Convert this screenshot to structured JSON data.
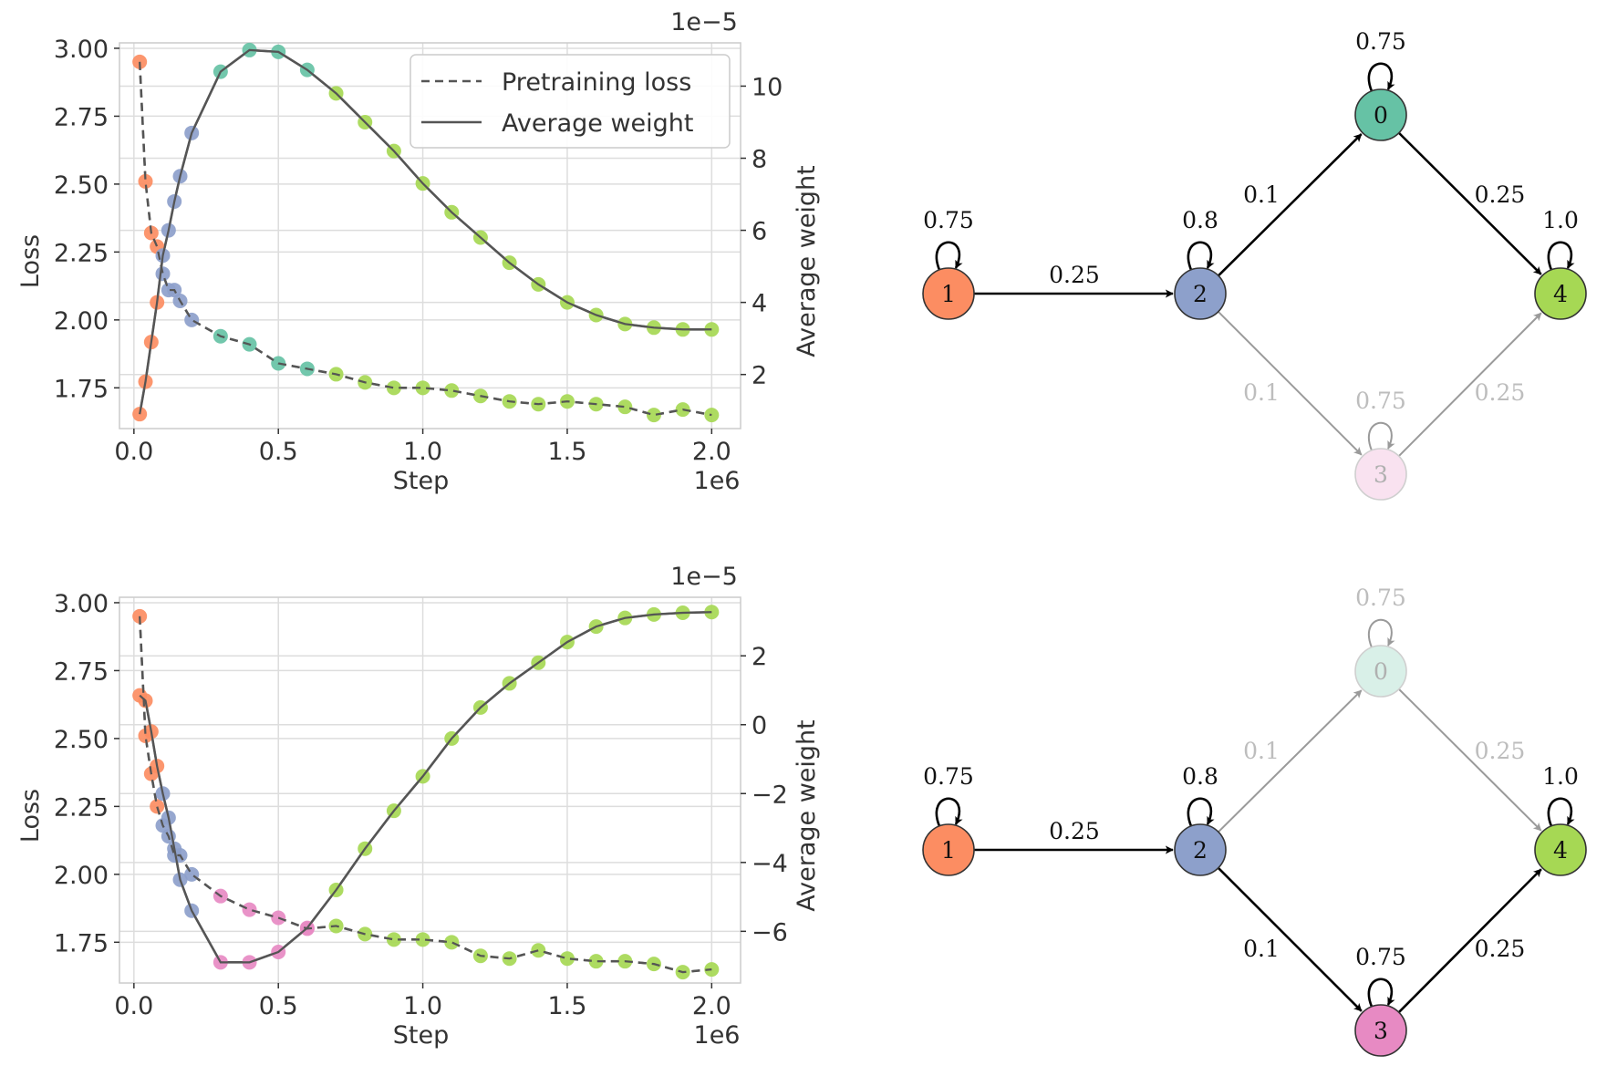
{
  "colors": {
    "node0": "#66c2a5",
    "node1": "#fc8d62",
    "node2": "#8da0cb",
    "node3": "#e78ac3",
    "node4": "#a6d854",
    "line": "#555555",
    "grid": "#dddddd",
    "edge": "#000000",
    "edge_faded": "#9a9a9a"
  },
  "chart_data": [
    {
      "type": "line",
      "panel": "top",
      "xlabel": "Step",
      "ylabel": "Loss",
      "ylabel_right": "Average weight",
      "x_offset_label": "1e6",
      "y_right_offset_label": "1e−5",
      "xlim": [
        -0.05,
        2.1
      ],
      "ylim": [
        1.6,
        3.02
      ],
      "ylim_right": [
        0.5,
        11.2
      ],
      "x_ticks": [
        0.0,
        0.5,
        1.0,
        1.5,
        2.0
      ],
      "x_tick_labels": [
        "0.0",
        "0.5",
        "1.0",
        "1.5",
        "2.0"
      ],
      "y_ticks": [
        1.75,
        2.0,
        2.25,
        2.5,
        2.75,
        3.0
      ],
      "y_tick_labels": [
        "1.75",
        "2.00",
        "2.25",
        "2.50",
        "2.75",
        "3.00"
      ],
      "y_right_ticks": [
        2,
        4,
        6,
        8,
        10
      ],
      "y_right_tick_labels": [
        "2",
        "4",
        "6",
        "8",
        "10"
      ],
      "legend": [
        {
          "label": "Pretraining loss",
          "style": "dashed"
        },
        {
          "label": "Average weight",
          "style": "solid"
        }
      ],
      "series": [
        {
          "name": "Pretraining loss",
          "axis": "left",
          "x": [
            0.02,
            0.04,
            0.06,
            0.08,
            0.1,
            0.12,
            0.14,
            0.16,
            0.2,
            0.3,
            0.4,
            0.5,
            0.6,
            0.7,
            0.8,
            0.9,
            1.0,
            1.1,
            1.2,
            1.3,
            1.4,
            1.5,
            1.6,
            1.7,
            1.8,
            1.9,
            2.0
          ],
          "y": [
            2.95,
            2.51,
            2.32,
            2.27,
            2.17,
            2.11,
            2.11,
            2.07,
            2.0,
            1.94,
            1.91,
            1.84,
            1.82,
            1.8,
            1.77,
            1.75,
            1.75,
            1.74,
            1.72,
            1.7,
            1.69,
            1.7,
            1.69,
            1.68,
            1.65,
            1.67,
            1.65
          ],
          "point_colors": [
            "node1",
            "node1",
            "node1",
            "node1",
            "node2",
            "node2",
            "node2",
            "node2",
            "node2",
            "node0",
            "node0",
            "node0",
            "node0",
            "node4",
            "node4",
            "node4",
            "node4",
            "node4",
            "node4",
            "node4",
            "node4",
            "node4",
            "node4",
            "node4",
            "node4",
            "node4",
            "node4"
          ]
        },
        {
          "name": "Average weight",
          "axis": "right",
          "x": [
            0.02,
            0.04,
            0.06,
            0.08,
            0.1,
            0.12,
            0.14,
            0.16,
            0.2,
            0.3,
            0.4,
            0.5,
            0.6,
            0.7,
            0.8,
            0.9,
            1.0,
            1.1,
            1.2,
            1.3,
            1.4,
            1.5,
            1.6,
            1.7,
            1.8,
            1.9,
            2.0
          ],
          "y": [
            0.9,
            1.8,
            2.9,
            4.0,
            5.3,
            6.0,
            6.8,
            7.5,
            8.7,
            10.4,
            11.0,
            10.95,
            10.45,
            9.8,
            9.0,
            8.2,
            7.3,
            6.5,
            5.8,
            5.1,
            4.5,
            4.0,
            3.65,
            3.4,
            3.3,
            3.25,
            3.25
          ],
          "point_colors": [
            "node1",
            "node1",
            "node1",
            "node1",
            "node2",
            "node2",
            "node2",
            "node2",
            "node2",
            "node0",
            "node0",
            "node0",
            "node0",
            "node4",
            "node4",
            "node4",
            "node4",
            "node4",
            "node4",
            "node4",
            "node4",
            "node4",
            "node4",
            "node4",
            "node4",
            "node4",
            "node4"
          ]
        }
      ]
    },
    {
      "type": "line",
      "panel": "bottom",
      "xlabel": "Step",
      "ylabel": "Loss",
      "ylabel_right": "Average weight",
      "x_offset_label": "1e6",
      "y_right_offset_label": "1e−5",
      "xlim": [
        -0.05,
        2.1
      ],
      "ylim": [
        1.6,
        3.02
      ],
      "ylim_right": [
        -7.5,
        3.7
      ],
      "x_ticks": [
        0.0,
        0.5,
        1.0,
        1.5,
        2.0
      ],
      "x_tick_labels": [
        "0.0",
        "0.5",
        "1.0",
        "1.5",
        "2.0"
      ],
      "y_ticks": [
        1.75,
        2.0,
        2.25,
        2.5,
        2.75,
        3.0
      ],
      "y_tick_labels": [
        "1.75",
        "2.00",
        "2.25",
        "2.50",
        "2.75",
        "3.00"
      ],
      "y_right_ticks": [
        -6,
        -4,
        -2,
        0,
        2
      ],
      "y_right_tick_labels": [
        "−6",
        "−4",
        "−2",
        "0",
        "2"
      ],
      "series": [
        {
          "name": "Pretraining loss",
          "axis": "left",
          "x": [
            0.02,
            0.04,
            0.06,
            0.08,
            0.1,
            0.12,
            0.14,
            0.16,
            0.2,
            0.3,
            0.4,
            0.5,
            0.6,
            0.7,
            0.8,
            0.9,
            1.0,
            1.1,
            1.2,
            1.3,
            1.4,
            1.5,
            1.6,
            1.7,
            1.8,
            1.9,
            2.0
          ],
          "y": [
            2.95,
            2.51,
            2.37,
            2.25,
            2.18,
            2.14,
            2.07,
            2.07,
            2.0,
            1.92,
            1.87,
            1.84,
            1.8,
            1.81,
            1.78,
            1.76,
            1.76,
            1.75,
            1.7,
            1.69,
            1.72,
            1.69,
            1.68,
            1.68,
            1.67,
            1.64,
            1.65
          ],
          "point_colors": [
            "node1",
            "node1",
            "node1",
            "node1",
            "node2",
            "node2",
            "node2",
            "node2",
            "node2",
            "node3",
            "node3",
            "node3",
            "node3",
            "node4",
            "node4",
            "node4",
            "node4",
            "node4",
            "node4",
            "node4",
            "node4",
            "node4",
            "node4",
            "node4",
            "node4",
            "node4",
            "node4"
          ]
        },
        {
          "name": "Average weight",
          "axis": "right",
          "x": [
            0.02,
            0.04,
            0.06,
            0.08,
            0.1,
            0.12,
            0.14,
            0.16,
            0.2,
            0.3,
            0.4,
            0.5,
            0.6,
            0.7,
            0.8,
            0.9,
            1.0,
            1.1,
            1.2,
            1.3,
            1.4,
            1.5,
            1.6,
            1.7,
            1.8,
            1.9,
            2.0
          ],
          "y": [
            0.85,
            0.7,
            -0.2,
            -1.2,
            -2.0,
            -2.7,
            -3.6,
            -4.5,
            -5.4,
            -6.9,
            -6.9,
            -6.6,
            -5.9,
            -4.8,
            -3.6,
            -2.5,
            -1.5,
            -0.4,
            0.5,
            1.2,
            1.8,
            2.4,
            2.85,
            3.1,
            3.2,
            3.25,
            3.27
          ],
          "point_colors": [
            "node1",
            "node1",
            "node1",
            "node1",
            "node2",
            "node2",
            "node2",
            "node2",
            "node2",
            "node3",
            "node3",
            "node3",
            "node3",
            "node4",
            "node4",
            "node4",
            "node4",
            "node4",
            "node4",
            "node4",
            "node4",
            "node4",
            "node4",
            "node4",
            "node4",
            "node4",
            "node4"
          ]
        }
      ]
    }
  ],
  "graphs": [
    {
      "panel": "top",
      "nodes": [
        {
          "id": "0",
          "label": "0",
          "color": "node0",
          "faded": false,
          "self_loop": "0.75",
          "loop_faded": false
        },
        {
          "id": "1",
          "label": "1",
          "color": "node1",
          "faded": false,
          "self_loop": "0.75",
          "loop_faded": false
        },
        {
          "id": "2",
          "label": "2",
          "color": "node2",
          "faded": false,
          "self_loop": "0.8",
          "loop_faded": false
        },
        {
          "id": "3",
          "label": "3",
          "color": "node3",
          "faded": true,
          "self_loop": "0.75",
          "loop_faded": true
        },
        {
          "id": "4",
          "label": "4",
          "color": "node4",
          "faded": false,
          "self_loop": "1.0",
          "loop_faded": false
        }
      ],
      "edges": [
        {
          "from": "1",
          "to": "2",
          "label": "0.25",
          "faded": false
        },
        {
          "from": "2",
          "to": "0",
          "label": "0.1",
          "faded": false
        },
        {
          "from": "0",
          "to": "4",
          "label": "0.25",
          "faded": false
        },
        {
          "from": "2",
          "to": "3",
          "label": "0.1",
          "faded": true
        },
        {
          "from": "3",
          "to": "4",
          "label": "0.25",
          "faded": true
        }
      ]
    },
    {
      "panel": "bottom",
      "nodes": [
        {
          "id": "0",
          "label": "0",
          "color": "node0",
          "faded": true,
          "self_loop": "0.75",
          "loop_faded": true
        },
        {
          "id": "1",
          "label": "1",
          "color": "node1",
          "faded": false,
          "self_loop": "0.75",
          "loop_faded": false
        },
        {
          "id": "2",
          "label": "2",
          "color": "node2",
          "faded": false,
          "self_loop": "0.8",
          "loop_faded": false
        },
        {
          "id": "3",
          "label": "3",
          "color": "node3",
          "faded": false,
          "self_loop": "0.75",
          "loop_faded": false
        },
        {
          "id": "4",
          "label": "4",
          "color": "node4",
          "faded": false,
          "self_loop": "1.0",
          "loop_faded": false
        }
      ],
      "edges": [
        {
          "from": "1",
          "to": "2",
          "label": "0.25",
          "faded": false
        },
        {
          "from": "2",
          "to": "0",
          "label": "0.1",
          "faded": true
        },
        {
          "from": "0",
          "to": "4",
          "label": "0.25",
          "faded": true
        },
        {
          "from": "2",
          "to": "3",
          "label": "0.1",
          "faded": false
        },
        {
          "from": "3",
          "to": "4",
          "label": "0.25",
          "faded": false
        }
      ]
    }
  ]
}
